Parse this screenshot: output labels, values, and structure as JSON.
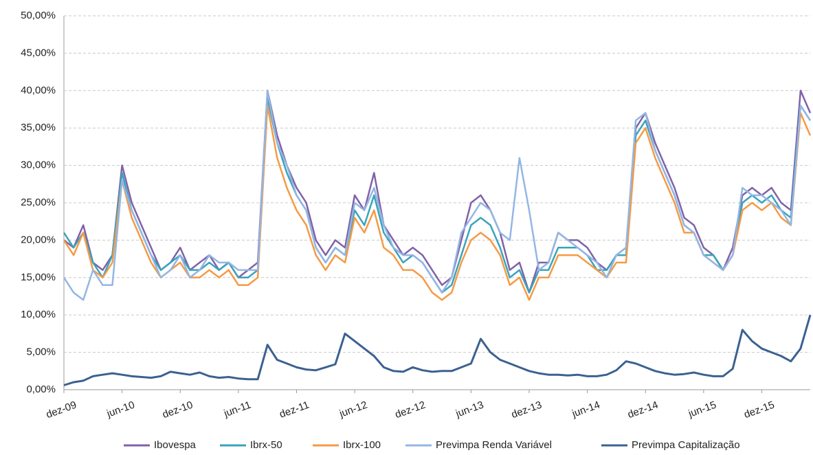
{
  "chart_data": {
    "type": "line",
    "categories": [
      "dez-09",
      null,
      null,
      null,
      null,
      null,
      "jun-10",
      null,
      null,
      null,
      null,
      null,
      "dez-10",
      null,
      null,
      null,
      null,
      null,
      "jun-11",
      null,
      null,
      null,
      null,
      null,
      "dez-11",
      null,
      null,
      null,
      null,
      null,
      "jun-12",
      null,
      null,
      null,
      null,
      null,
      "dez-12",
      null,
      null,
      null,
      null,
      null,
      "jun-13",
      null,
      null,
      null,
      null,
      null,
      "dez-13",
      null,
      null,
      null,
      null,
      null,
      "jun-14",
      null,
      null,
      null,
      null,
      null,
      "dez-14",
      null,
      null,
      null,
      null,
      null,
      "jun-15",
      null,
      null,
      null,
      null,
      null,
      "dez-15",
      null,
      null,
      null,
      null,
      null
    ],
    "ylim": [
      0,
      50
    ],
    "yticks": [
      {
        "value": 0,
        "label": "0,00%"
      },
      {
        "value": 5,
        "label": "5,00%"
      },
      {
        "value": 10,
        "label": "10,00%"
      },
      {
        "value": 15,
        "label": "15,00%"
      },
      {
        "value": 20,
        "label": "20,00%"
      },
      {
        "value": 25,
        "label": "25,00%"
      },
      {
        "value": 30,
        "label": "30,00%"
      },
      {
        "value": 35,
        "label": "35,00%"
      },
      {
        "value": 40,
        "label": "40,00%"
      },
      {
        "value": 45,
        "label": "45,00%"
      },
      {
        "value": 50,
        "label": "50,00%"
      }
    ],
    "grid": true,
    "series": [
      {
        "name": "Ibovespa",
        "color": "#8062a7",
        "values": [
          20,
          19,
          22,
          17,
          16,
          18,
          30,
          25,
          22,
          19,
          16,
          17,
          19,
          16,
          17,
          18,
          16,
          17,
          15,
          16,
          17,
          40,
          34,
          30,
          27,
          25,
          20,
          18,
          20,
          19,
          26,
          24,
          29,
          22,
          20,
          18,
          19,
          18,
          16,
          14,
          15,
          20,
          25,
          26,
          24,
          21,
          16,
          17,
          13,
          17,
          17,
          21,
          20,
          20,
          19,
          17,
          16,
          18,
          19,
          35,
          37,
          33,
          30,
          27,
          23,
          22,
          19,
          18,
          16,
          19,
          26,
          27,
          26,
          27,
          25,
          24,
          40,
          37
        ]
      },
      {
        "name": "Ibrx-50",
        "color": "#3aa3bb",
        "values": [
          21,
          19,
          21,
          17,
          15,
          18,
          29,
          24,
          21,
          18,
          16,
          17,
          18,
          16,
          16,
          17,
          16,
          17,
          15,
          15,
          16,
          39,
          33,
          29,
          26,
          24,
          19,
          17,
          19,
          18,
          24,
          22,
          26,
          21,
          19,
          17,
          18,
          17,
          15,
          13,
          14,
          18,
          22,
          23,
          22,
          19,
          15,
          16,
          13,
          16,
          16,
          19,
          19,
          19,
          18,
          16,
          16,
          18,
          18,
          34,
          36,
          32,
          29,
          26,
          22,
          21,
          18,
          18,
          16,
          18,
          25,
          26,
          25,
          26,
          24,
          23,
          38,
          36
        ]
      },
      {
        "name": "Ibrx-100",
        "color": "#f59a45",
        "values": [
          20,
          18,
          21,
          16,
          15,
          17,
          28,
          23,
          20,
          17,
          15,
          16,
          17,
          15,
          15,
          16,
          15,
          16,
          14,
          14,
          15,
          38,
          31,
          27,
          24,
          22,
          18,
          16,
          18,
          17,
          23,
          21,
          24,
          19,
          18,
          16,
          16,
          15,
          13,
          12,
          13,
          17,
          20,
          21,
          20,
          18,
          14,
          15,
          12,
          15,
          15,
          18,
          18,
          18,
          17,
          16,
          15,
          17,
          17,
          33,
          35,
          31,
          28,
          25,
          21,
          21,
          18,
          17,
          16,
          18,
          24,
          25,
          24,
          25,
          23,
          22,
          37,
          34
        ]
      },
      {
        "name": "Previmpa Renda Variável",
        "color": "#93b6e4",
        "values": [
          15,
          13,
          12,
          16,
          14,
          14,
          28,
          24,
          21,
          18,
          15,
          16,
          18,
          15,
          16,
          18,
          17,
          17,
          16,
          16,
          16,
          40,
          33,
          30,
          26,
          24,
          19,
          17,
          19,
          18,
          25,
          24,
          27,
          22,
          19,
          18,
          18,
          17,
          15,
          13,
          15,
          21,
          23,
          25,
          24,
          21,
          20,
          31,
          24,
          16,
          17,
          21,
          20,
          19,
          18,
          17,
          15,
          18,
          19,
          36,
          37,
          32,
          29,
          26,
          22,
          21,
          18,
          17,
          16,
          18,
          27,
          26,
          26,
          25,
          24,
          22,
          38,
          36
        ]
      },
      {
        "name": "Previmpa Capitalização",
        "color": "#3b6190",
        "values": [
          0.6,
          1,
          1.2,
          1.8,
          2,
          2.2,
          2,
          1.8,
          1.7,
          1.6,
          1.8,
          2.4,
          2.2,
          2,
          2.3,
          1.8,
          1.6,
          1.7,
          1.5,
          1.4,
          1.4,
          6,
          4,
          3.5,
          3,
          2.7,
          2.6,
          3,
          3.4,
          7.5,
          6.5,
          5.5,
          4.5,
          3,
          2.5,
          2.4,
          3,
          2.6,
          2.4,
          2.5,
          2.5,
          3,
          3.5,
          6.8,
          5,
          4,
          3.5,
          3,
          2.5,
          2.2,
          2,
          2,
          1.9,
          2,
          1.8,
          1.8,
          2,
          2.6,
          3.8,
          3.5,
          3,
          2.5,
          2.2,
          2,
          2.1,
          2.3,
          2,
          1.8,
          1.8,
          2.8,
          8,
          6.5,
          5.5,
          5,
          4.5,
          3.8,
          5.5,
          10
        ]
      }
    ]
  }
}
